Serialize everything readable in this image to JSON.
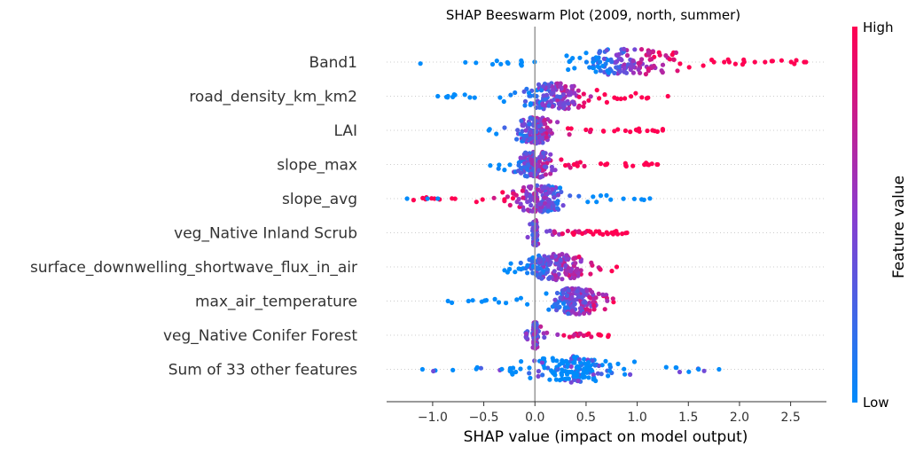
{
  "chart_data": {
    "type": "scatter",
    "title": "SHAP Beeswarm Plot (2009, north, summer)",
    "xlabel": "SHAP value (impact on model output)",
    "xlim": [
      -1.45,
      2.85
    ],
    "xticks": [
      -1.0,
      -0.5,
      0.0,
      0.5,
      1.0,
      1.5,
      2.0,
      2.5
    ],
    "xtick_labels": [
      "−1.0",
      "−0.5",
      "0.0",
      "0.5",
      "1.0",
      "1.5",
      "2.0",
      "2.5"
    ],
    "features": [
      {
        "name": "Band1",
        "range": [
          -1.25,
          2.65
        ],
        "center": 0.9,
        "spread": 0.45,
        "high_shift": 1,
        "outliers": [
          2.65,
          2.25,
          2.15,
          1.9,
          1.85,
          1.75
        ]
      },
      {
        "name": "road_density_km_km2",
        "range": [
          -0.95,
          1.3
        ],
        "center": 0.2,
        "spread": 0.3,
        "high_shift": 1,
        "outliers": [
          1.3,
          -0.95,
          -0.85
        ]
      },
      {
        "name": "LAI",
        "range": [
          -0.45,
          1.25
        ],
        "center": 0.0,
        "spread": 0.15,
        "high_shift": 1,
        "outliers": [
          1.25,
          1.15,
          1.0,
          -0.45
        ]
      },
      {
        "name": "slope_max",
        "range": [
          -0.45,
          1.2
        ],
        "center": 0.0,
        "spread": 0.15,
        "high_shift": 1,
        "outliers": [
          1.2,
          1.1,
          0.7
        ]
      },
      {
        "name": "slope_avg",
        "range": [
          -1.25,
          1.15
        ],
        "center": 0.05,
        "spread": 0.25,
        "high_shift": -1,
        "outliers": [
          -1.25,
          -1.05,
          -0.95
        ]
      },
      {
        "name": "veg_Native Inland Scrub ",
        "range": [
          -0.1,
          0.9
        ],
        "center": 0.0,
        "spread": 0.02,
        "high_shift": 1,
        "outliers": [
          0.9,
          0.75
        ]
      },
      {
        "name": "surface_downwelling_shortwave_flux_in_air",
        "range": [
          -0.3,
          0.8
        ],
        "center": 0.2,
        "spread": 0.25,
        "high_shift": 1,
        "outliers": [
          0.8
        ]
      },
      {
        "name": "max_air_temperature",
        "range": [
          -0.85,
          0.8
        ],
        "center": 0.4,
        "spread": 0.2,
        "high_shift": 1,
        "outliers": [
          -0.85,
          -0.65
        ]
      },
      {
        "name": "veg_Native Conifer Forest ",
        "range": [
          -0.1,
          0.72
        ],
        "center": 0.0,
        "spread": 0.02,
        "high_shift": 1,
        "outliers": [
          0.72
        ]
      },
      {
        "name": "Sum of 33 other features",
        "range": [
          -1.1,
          1.8
        ],
        "center": 0.4,
        "spread": 0.4,
        "high_shift": 0,
        "outliers": [
          1.8,
          1.6,
          -1.1
        ]
      }
    ],
    "colorbar": {
      "label": "Feature value",
      "high": "High",
      "low": "Low",
      "high_color": "#ff0052",
      "low_color": "#008bfb"
    },
    "grid": false
  }
}
